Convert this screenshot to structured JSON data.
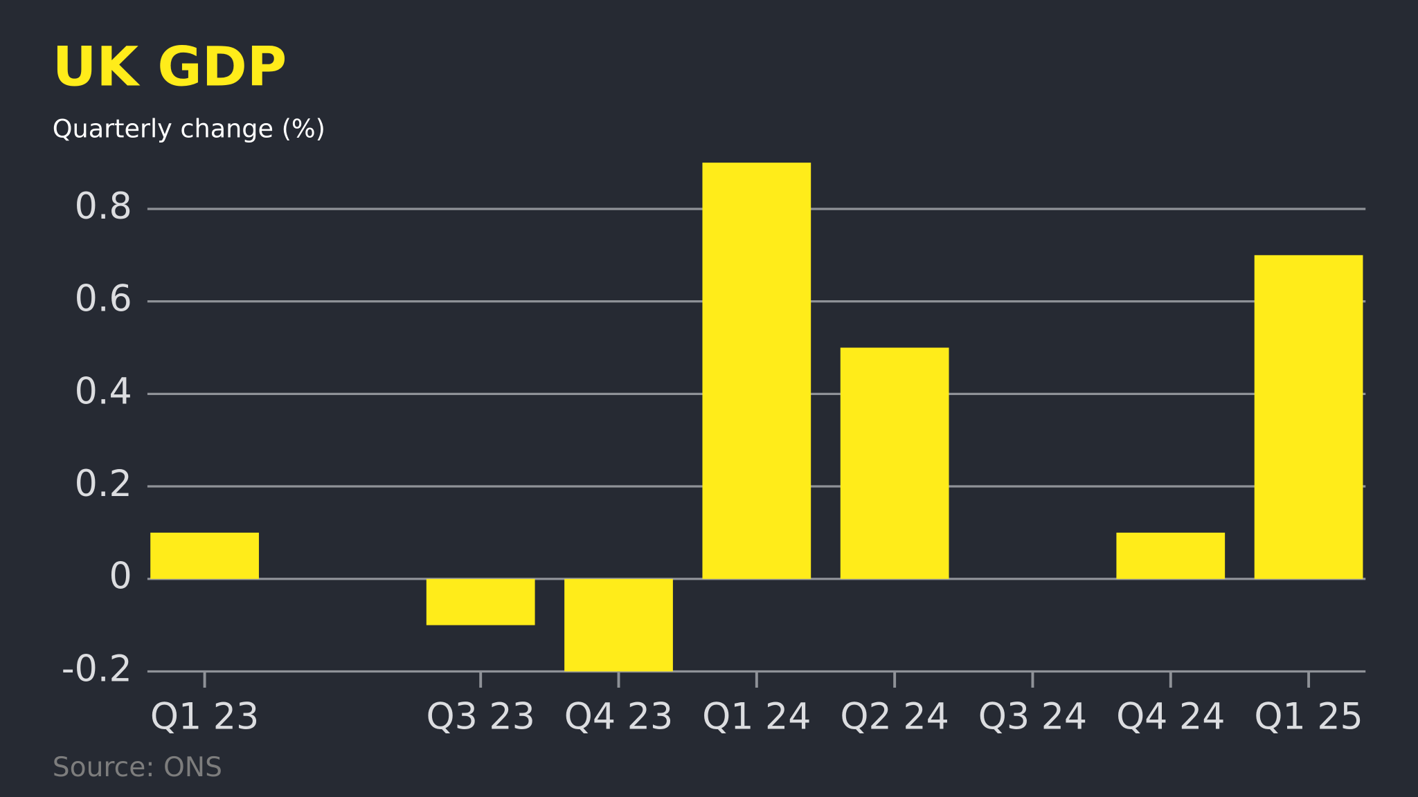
{
  "chart_data": {
    "type": "bar",
    "title": "UK GDP",
    "subtitle": "Quarterly change (%)",
    "source": "Source: ONS",
    "categories": [
      "Q1 23",
      null,
      "Q3 23",
      "Q4 23",
      "Q1 24",
      "Q2 24",
      "Q3 24",
      "Q4 24",
      "Q1 25"
    ],
    "values": [
      0.1,
      0,
      -0.1,
      -0.2,
      0.9,
      0.5,
      0,
      0.1,
      0.7
    ],
    "color": "#ffec1a",
    "ylim": [
      -0.2,
      0.9
    ],
    "yticks": [
      -0.2,
      0,
      0.2,
      0.4,
      0.6,
      0.8
    ],
    "grid": true
  }
}
